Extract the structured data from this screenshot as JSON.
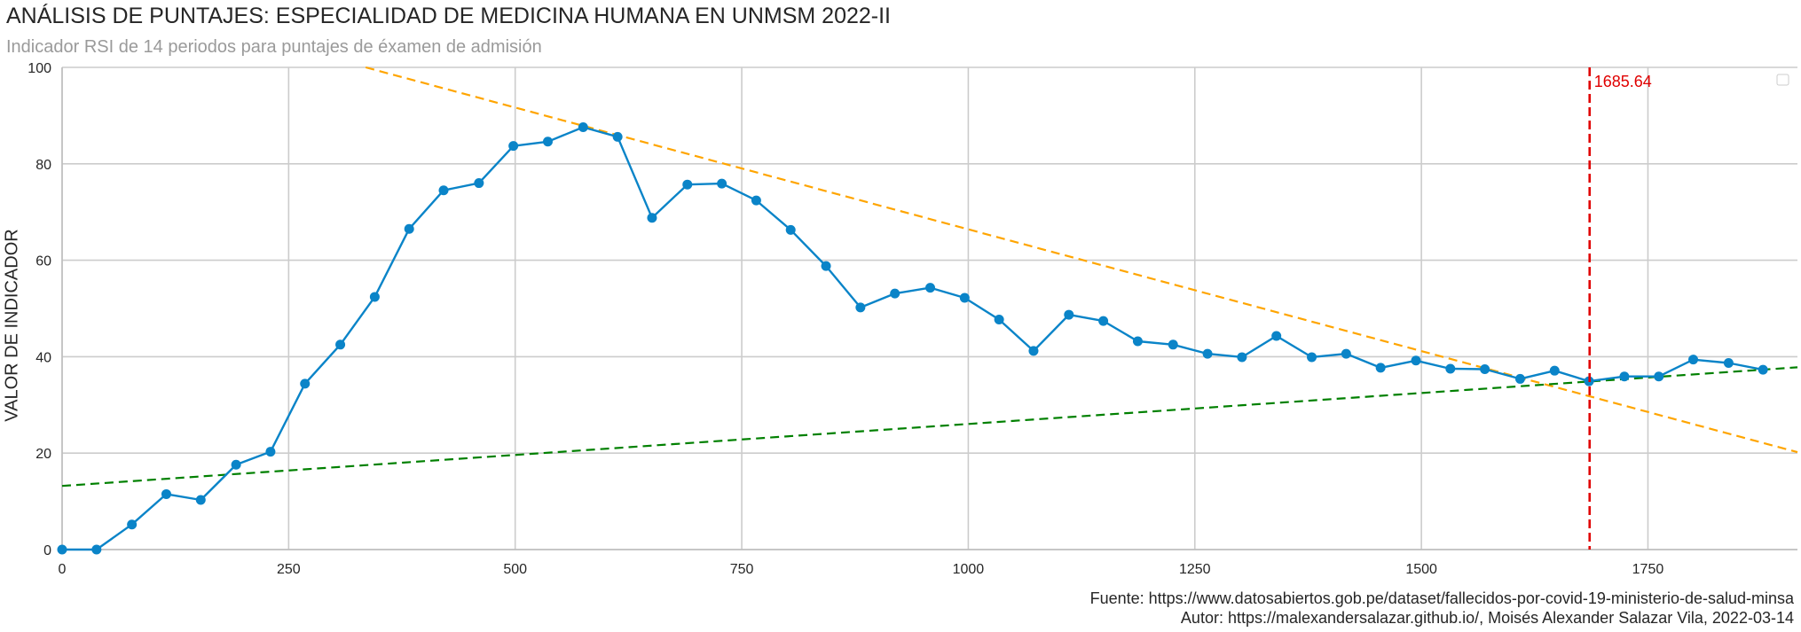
{
  "header": {
    "title": "ANÁLISIS DE PUNTAJES: ESPECIALIDAD DE MEDICINA HUMANA EN UNMSM 2022-II",
    "subtitle": "Indicador RSI de 14 periodos para puntajes de éxamen de admisión"
  },
  "footer": {
    "source": "Fuente: https://www.datosabiertos.gob.pe/dataset/fallecidos-por-covid-19-ministerio-de-salud-minsa",
    "author": "Autor: https://malexandersalazar.github.io/, Moisés Alexander Salazar Vila, 2022-03-14"
  },
  "chart_data": {
    "type": "line",
    "title": "ANÁLISIS DE PUNTAJES: ESPECIALIDAD DE MEDICINA HUMANA EN UNMSM 2022-II",
    "subtitle": "Indicador RSI de 14 periodos para puntajes de éxamen de admisión",
    "xlabel": "",
    "ylabel": "VALOR DE INDICADOR",
    "xlim": [
      0,
      1915
    ],
    "ylim": [
      0,
      100
    ],
    "x_ticks": [
      0,
      250,
      500,
      750,
      1000,
      1250,
      1500,
      1750
    ],
    "y_ticks": [
      0,
      20,
      40,
      60,
      80,
      100
    ],
    "grid": true,
    "legend": "top-right (empty)",
    "colors": {
      "series": "#0a84c8",
      "upper_trend": "#ffa500",
      "lower_trend": "#008000",
      "vline": "#e00000",
      "grid": "#cccccc"
    },
    "series": [
      {
        "x": [
          0,
          38,
          77,
          115,
          153,
          192,
          230,
          268,
          307,
          345,
          383,
          421,
          460,
          498,
          536,
          575,
          613,
          651,
          690,
          728,
          766,
          804,
          843,
          881,
          919,
          958,
          996,
          1034,
          1072,
          1111,
          1149,
          1187,
          1226,
          1264,
          1302,
          1340,
          1379,
          1417,
          1455,
          1494,
          1532,
          1570,
          1609,
          1647,
          1685,
          1724,
          1762,
          1800,
          1839,
          1877
        ],
        "values": [
          0,
          0,
          5.2,
          11.5,
          10.3,
          17.6,
          20.3,
          34.4,
          42.5,
          52.4,
          66.5,
          74.5,
          76.0,
          83.7,
          84.6,
          87.6,
          85.6,
          68.8,
          75.7,
          75.9,
          72.4,
          66.3,
          58.8,
          50.2,
          53.1,
          54.3,
          52.2,
          47.7,
          41.2,
          48.7,
          47.4,
          43.2,
          42.5,
          40.6,
          39.9,
          44.3,
          39.9,
          40.6,
          37.7,
          39.2,
          37.5,
          37.4,
          35.4,
          37.1,
          34.9,
          35.9,
          35.9,
          39.4,
          38.7,
          37.3
        ]
      }
    ],
    "trendlines": [
      {
        "x": [
          335,
          1915
        ],
        "values": [
          100,
          20.2
        ]
      },
      {
        "x": [
          0,
          1915
        ],
        "values": [
          13.2,
          37.8
        ]
      }
    ],
    "vline": {
      "x": 1685.64,
      "label": "1685.64"
    }
  }
}
